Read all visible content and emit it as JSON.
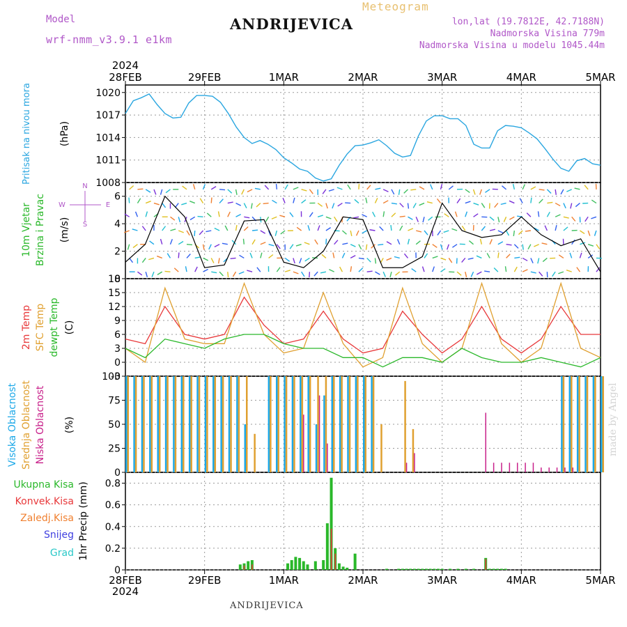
{
  "header": {
    "model_label": "Model",
    "model_name": "wrf-nmm_v3.9.1 e1km",
    "title": "ANDRIJEVICA",
    "product": "Meteogram",
    "lonlat": "lon,lat (19.7812E, 42.7188N)",
    "elevation": "Nadmorska Visina 779m",
    "model_elevation": "Nadmorska Visina u modelu 1045.44m"
  },
  "footer": {
    "station": "ANDRIJEVICA",
    "credit": "made by Angel"
  },
  "time_axis": {
    "top_year": "2024",
    "bottom_year": "2024",
    "ticks": [
      "28FEB",
      "29FEB",
      "1MAR",
      "2MAR",
      "3MAR",
      "4MAR",
      "5MAR"
    ]
  },
  "panels": {
    "pressure": {
      "label": "Pritisak na nivou mora",
      "unit": "(hPa)",
      "color": "#2aa6e0",
      "yticks": [
        "1020",
        "1017",
        "1014",
        "1011",
        "1008"
      ]
    },
    "wind": {
      "labels": [
        "10m Vjetar",
        "Brzina i Pravac"
      ],
      "unit": "(m/s)",
      "compass": [
        "N",
        "W",
        "E",
        "S"
      ],
      "yticks": [
        "6",
        "4",
        "2",
        "0"
      ]
    },
    "temp": {
      "labels": [
        "2m Temp",
        "SFC Temp",
        "dewpt Temp"
      ],
      "unit": "(C)",
      "colors": [
        "#e8383a",
        "#e0a030",
        "#2ab82a"
      ],
      "yticks": [
        "18",
        "15",
        "12",
        "9",
        "6",
        "3",
        "0",
        "-3"
      ]
    },
    "clouds": {
      "labels": [
        "Visoka Oblacnost",
        "Srednja Oblacnost",
        "Niska Oblacnost"
      ],
      "unit": "(%)",
      "colors": [
        "#1ca8e8",
        "#e0a030",
        "#c8208a"
      ],
      "yticks": [
        "100",
        "75",
        "50",
        "25",
        "0"
      ]
    },
    "precip": {
      "labels": [
        "Ukupna Kisa",
        "Konvek.Kisa",
        "Zaledj.Kisa",
        "Snijeg",
        "Grad"
      ],
      "unit": "1hr Precip (mm)",
      "colors": [
        "#2ab82a",
        "#e8383a",
        "#f08030",
        "#4040e0",
        "#2ac8c8"
      ],
      "yticks": [
        "0.8",
        "0.6",
        "0.4",
        "0.2",
        "0"
      ]
    }
  },
  "chart_data": [
    {
      "type": "line",
      "title": "Pritisak na nivou mora",
      "ylabel": "(hPa)",
      "ylim": [
        1008,
        1021
      ],
      "x": [
        0,
        0.1,
        0.2,
        0.3,
        0.4,
        0.5,
        0.6,
        0.7,
        0.8,
        0.9,
        1.0,
        1.1,
        1.2,
        1.3,
        1.4,
        1.5,
        1.6,
        1.7,
        1.8,
        1.9,
        2.0,
        2.1,
        2.2,
        2.3,
        2.4,
        2.5,
        2.6,
        2.7,
        2.8,
        2.9,
        3.0,
        3.1,
        3.2,
        3.3,
        3.4,
        3.5,
        3.6,
        3.7,
        3.8,
        3.9,
        4.0,
        4.1,
        4.2,
        4.3,
        4.4,
        4.5,
        4.6,
        4.7,
        4.8,
        4.9,
        5.0,
        5.1,
        5.2,
        5.3,
        5.4,
        5.5,
        5.6,
        5.7,
        5.8,
        5.9,
        6.0
      ],
      "series": [
        {
          "values": [
            1017.2,
            1018.9,
            1019.3,
            1019.8,
            1018.4,
            1017.2,
            1016.6,
            1016.7,
            1018.6,
            1019.6,
            1019.6,
            1019.5,
            1018.7,
            1017.2,
            1015.4,
            1014.0,
            1013.2,
            1013.6,
            1013.1,
            1012.4,
            1011.3,
            1010.6,
            1009.8,
            1009.5,
            1008.6,
            1008.2,
            1008.5,
            1010.3,
            1011.8,
            1012.9,
            1013.0,
            1013.3,
            1013.7,
            1012.9,
            1011.9,
            1011.4,
            1011.6,
            1014.2,
            1016.2,
            1016.9,
            1016.9,
            1016.5,
            1016.5,
            1015.6,
            1013.1,
            1012.6,
            1012.6,
            1014.9,
            1015.6,
            1015.5,
            1015.3,
            1014.6,
            1013.8,
            1012.5,
            1011.1,
            1009.9,
            1009.5,
            1010.9,
            1011.2,
            1010.5,
            1010.3
          ]
        }
      ]
    },
    {
      "type": "line",
      "title": "10m Vjetar Brzina i Pravac",
      "ylabel": "(m/s)",
      "ylim": [
        0,
        7
      ],
      "x": [
        0,
        0.25,
        0.5,
        0.75,
        1.0,
        1.25,
        1.5,
        1.75,
        2.0,
        2.25,
        2.5,
        2.75,
        3.0,
        3.25,
        3.5,
        3.75,
        4.0,
        4.25,
        4.5,
        4.75,
        5.0,
        5.25,
        5.5,
        5.75,
        6.0
      ],
      "series": [
        {
          "values": [
            1.2,
            2.5,
            6.0,
            4.5,
            0.8,
            1.0,
            4.2,
            4.3,
            1.2,
            0.8,
            2.0,
            4.5,
            4.3,
            0.8,
            0.8,
            1.6,
            5.5,
            3.5,
            3.0,
            3.2,
            4.5,
            3.2,
            2.4,
            2.9,
            0.5
          ]
        }
      ]
    },
    {
      "type": "line",
      "title": "Temperatura",
      "ylabel": "(C)",
      "ylim": [
        -3,
        18
      ],
      "x": [
        0,
        0.25,
        0.5,
        0.75,
        1.0,
        1.25,
        1.5,
        1.75,
        2.0,
        2.25,
        2.5,
        2.75,
        3.0,
        3.25,
        3.5,
        3.75,
        4.0,
        4.25,
        4.5,
        4.75,
        5.0,
        5.25,
        5.5,
        5.75,
        6.0
      ],
      "series": [
        {
          "name": "2m Temp",
          "values": [
            5,
            4,
            12,
            6,
            5,
            6,
            14,
            8,
            4,
            5,
            11,
            5,
            2,
            3,
            11,
            6,
            2,
            5,
            12,
            5,
            2,
            5,
            12,
            6,
            6
          ]
        },
        {
          "name": "SFC Temp",
          "values": [
            3,
            0,
            16,
            5,
            4,
            4,
            17,
            6,
            2,
            3,
            15,
            4,
            -1,
            1,
            16,
            4,
            0,
            3,
            17,
            4,
            0,
            3,
            17,
            3,
            1
          ]
        },
        {
          "name": "dewpt Temp",
          "values": [
            3,
            1,
            5,
            4,
            3,
            5,
            6,
            6,
            4,
            3,
            3,
            1,
            1,
            -1,
            1,
            1,
            0,
            3,
            1,
            0,
            0,
            1,
            0,
            -1,
            1
          ]
        }
      ]
    },
    {
      "type": "bar",
      "title": "Oblacnost",
      "ylabel": "(%)",
      "ylim": [
        0,
        100
      ],
      "x": [
        0.0,
        0.1,
        0.2,
        0.3,
        0.4,
        0.5,
        0.6,
        0.7,
        0.8,
        0.9,
        1.0,
        1.1,
        1.2,
        1.3,
        1.4,
        1.5,
        1.6,
        1.7,
        1.8,
        1.9,
        2.0,
        2.1,
        2.2,
        2.3,
        2.4,
        2.5,
        2.6,
        2.7,
        2.8,
        2.9,
        3.0,
        3.1,
        3.2,
        3.3,
        3.4,
        3.5,
        3.6,
        3.7,
        3.8,
        3.9,
        4.0,
        4.1,
        4.2,
        4.3,
        4.4,
        4.5,
        4.6,
        4.7,
        4.8,
        4.9,
        5.0,
        5.1,
        5.2,
        5.3,
        5.4,
        5.5,
        5.6,
        5.7,
        5.8,
        5.9,
        6.0
      ],
      "series": [
        {
          "name": "Visoka Oblacnost",
          "values": [
            100,
            100,
            100,
            100,
            100,
            100,
            100,
            100,
            100,
            100,
            100,
            100,
            100,
            100,
            100,
            50,
            0,
            0,
            100,
            100,
            100,
            100,
            100,
            100,
            50,
            80,
            100,
            100,
            100,
            100,
            100,
            100,
            0,
            0,
            0,
            0,
            0,
            0,
            0,
            0,
            0,
            0,
            0,
            0,
            0,
            0,
            0,
            0,
            0,
            0,
            0,
            0,
            0,
            0,
            0,
            100,
            100,
            100,
            100,
            100,
            100
          ]
        },
        {
          "name": "Srednja Oblacnost",
          "values": [
            100,
            100,
            100,
            100,
            100,
            100,
            100,
            100,
            100,
            100,
            100,
            100,
            100,
            100,
            100,
            100,
            40,
            0,
            100,
            100,
            100,
            100,
            100,
            100,
            100,
            100,
            100,
            100,
            100,
            100,
            100,
            100,
            50,
            0,
            0,
            95,
            45,
            0,
            0,
            0,
            0,
            0,
            0,
            0,
            0,
            0,
            0,
            0,
            0,
            0,
            0,
            0,
            0,
            0,
            0,
            100,
            100,
            100,
            100,
            100,
            100
          ]
        },
        {
          "name": "Niska Oblacnost",
          "values": [
            0,
            0,
            0,
            0,
            0,
            0,
            0,
            0,
            0,
            0,
            0,
            0,
            0,
            0,
            0,
            0,
            0,
            0,
            0,
            0,
            0,
            0,
            60,
            0,
            80,
            30,
            0,
            0,
            0,
            0,
            0,
            0,
            0,
            0,
            0,
            10,
            20,
            0,
            0,
            0,
            0,
            0,
            0,
            0,
            0,
            62,
            10,
            10,
            10,
            10,
            10,
            10,
            5,
            5,
            5,
            5,
            5,
            0,
            0,
            0,
            0
          ]
        }
      ]
    },
    {
      "type": "bar",
      "title": "1hr Precip",
      "ylabel": "1hr Precip (mm)",
      "ylim": [
        0,
        0.9
      ],
      "series": [
        {
          "name": "Ukupna Kisa",
          "x": [
            1.45,
            1.5,
            1.55,
            1.6,
            2.05,
            2.1,
            2.15,
            2.2,
            2.25,
            2.3,
            2.4,
            2.5,
            2.55,
            2.6,
            2.65,
            2.7,
            2.75,
            2.8,
            2.9,
            3.3,
            3.45,
            3.5,
            3.55,
            3.6,
            3.65,
            3.7,
            3.75,
            3.8,
            3.85,
            3.9,
            3.95,
            4.0,
            4.1,
            4.2,
            4.3,
            4.4,
            4.55,
            4.6,
            4.65,
            4.7,
            4.75,
            4.8
          ],
          "values": [
            0.05,
            0.06,
            0.08,
            0.09,
            0.06,
            0.09,
            0.12,
            0.11,
            0.08,
            0.05,
            0.08,
            0.09,
            0.43,
            0.85,
            0.2,
            0.06,
            0.03,
            0.02,
            0.15,
            0.01,
            0.01,
            0.01,
            0.01,
            0.01,
            0.01,
            0.01,
            0.01,
            0.01,
            0.01,
            0.01,
            0.01,
            0.01,
            0.01,
            0.01,
            0.01,
            0.01,
            0.11,
            0.01,
            0.01,
            0.01,
            0.01,
            0.01
          ]
        },
        {
          "name": "Konvek.Kisa",
          "x": [
            1.5,
            1.6,
            2.6,
            2.65,
            4.55
          ],
          "values": [
            0.04,
            0.05,
            0.38,
            0.15,
            0.1
          ]
        }
      ]
    }
  ]
}
